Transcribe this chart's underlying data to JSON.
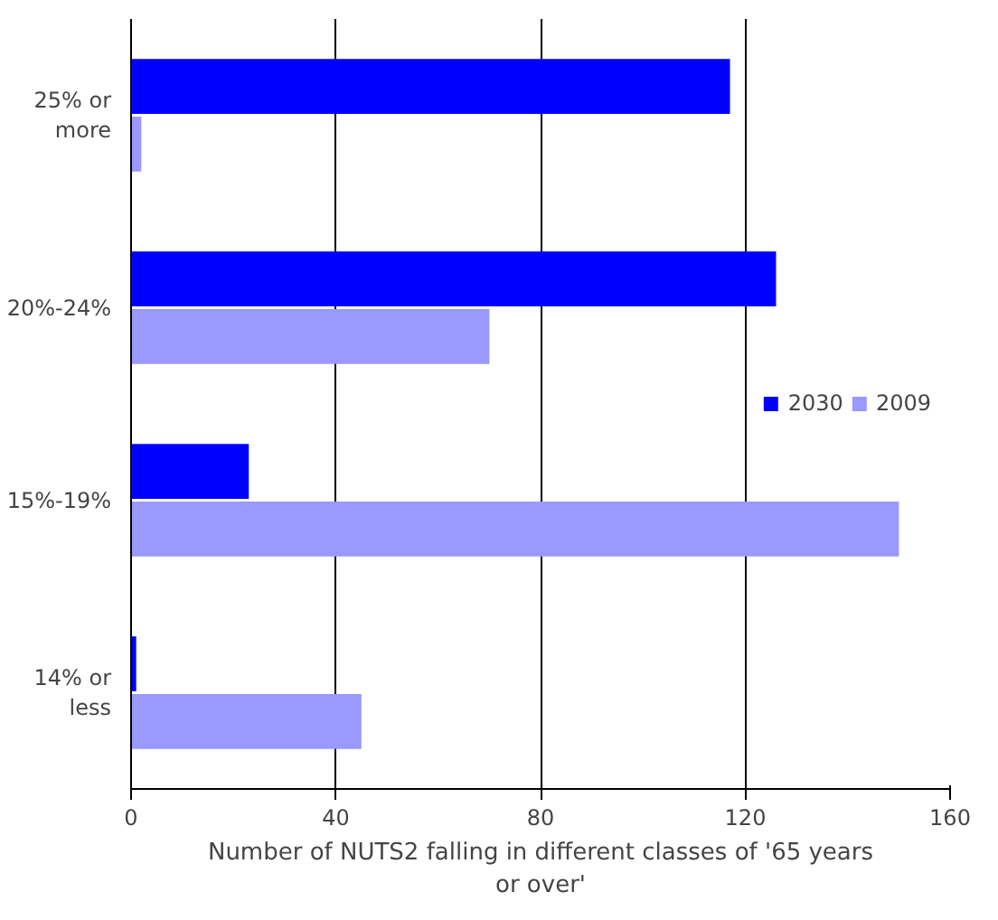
{
  "chart_data": {
    "type": "bar",
    "orientation": "horizontal",
    "xlabel": "Number of NUTS2 falling in different classes of '65 years or over'",
    "categories": [
      "25% or more",
      "20%-24%",
      "15%-19%",
      "14% or less"
    ],
    "series": [
      {
        "name": "2030",
        "color": "#0000ff",
        "values": [
          117,
          126,
          23,
          1
        ]
      },
      {
        "name": "2009",
        "color": "#9999ff",
        "values": [
          2,
          70,
          150,
          45
        ]
      }
    ],
    "xlim": [
      0,
      160
    ],
    "xticks": [
      0,
      40,
      80,
      120,
      160
    ],
    "grid": "x",
    "legend": "right"
  }
}
